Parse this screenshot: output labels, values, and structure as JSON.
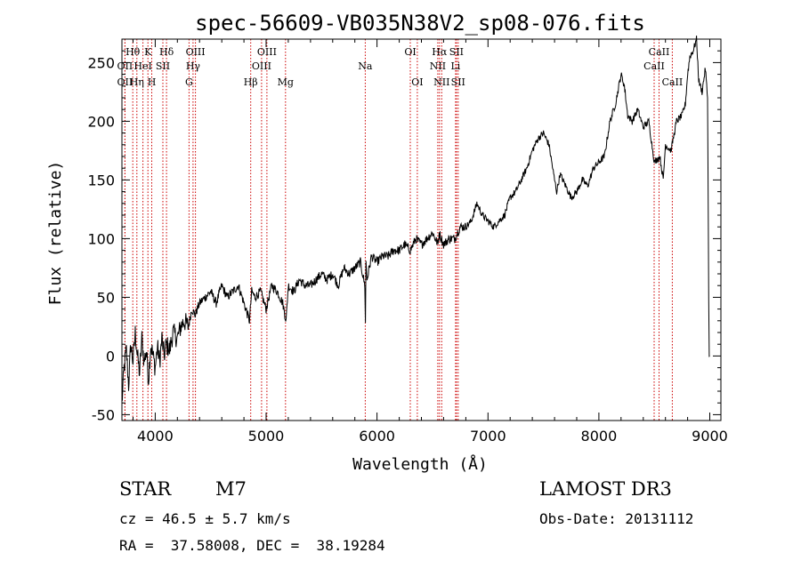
{
  "chart_data": {
    "type": "line",
    "title": "spec-56609-VB035N38V2_sp08-076.fits",
    "xlabel": "Wavelength (Å)",
    "ylabel": "Flux (relative)",
    "xlim": [
      3700,
      9100
    ],
    "ylim": [
      -55,
      270
    ],
    "xticks": [
      4000,
      5000,
      6000,
      7000,
      8000,
      9000
    ],
    "yticks": [
      -50,
      0,
      50,
      100,
      150,
      200,
      250
    ],
    "series": [
      {
        "name": "flux",
        "x": [
          3700,
          3720,
          3740,
          3760,
          3780,
          3800,
          3820,
          3840,
          3860,
          3880,
          3900,
          3920,
          3940,
          3960,
          3980,
          4000,
          4020,
          4040,
          4060,
          4080,
          4100,
          4130,
          4160,
          4200,
          4230,
          4260,
          4300,
          4330,
          4360,
          4400,
          4450,
          4500,
          4550,
          4600,
          4650,
          4700,
          4750,
          4800,
          4850,
          4870,
          4900,
          4950,
          5000,
          5050,
          5100,
          5150,
          5180,
          5200,
          5250,
          5300,
          5350,
          5400,
          5450,
          5500,
          5550,
          5600,
          5650,
          5700,
          5750,
          5800,
          5850,
          5890,
          5895,
          5900,
          5910,
          5950,
          6000,
          6050,
          6100,
          6150,
          6200,
          6250,
          6300,
          6350,
          6400,
          6450,
          6500,
          6550,
          6560,
          6600,
          6650,
          6700,
          6750,
          6800,
          6850,
          6900,
          6950,
          7000,
          7050,
          7100,
          7150,
          7200,
          7250,
          7300,
          7350,
          7400,
          7450,
          7500,
          7550,
          7600,
          7620,
          7650,
          7700,
          7750,
          7800,
          7850,
          7900,
          7950,
          8000,
          8050,
          8100,
          8150,
          8200,
          8230,
          8260,
          8300,
          8350,
          8400,
          8450,
          8500,
          8550,
          8580,
          8600,
          8650,
          8700,
          8750,
          8780,
          8800,
          8820,
          8850,
          8880,
          8900,
          8930,
          8960,
          8980,
          8990,
          8995,
          9000
        ],
        "y": [
          -40,
          -10,
          5,
          -25,
          10,
          -5,
          20,
          0,
          -15,
          15,
          -5,
          5,
          -20,
          10,
          0,
          -10,
          8,
          -5,
          15,
          0,
          10,
          5,
          20,
          15,
          25,
          30,
          25,
          40,
          35,
          45,
          50,
          55,
          45,
          60,
          50,
          55,
          60,
          45,
          30,
          55,
          50,
          55,
          40,
          60,
          55,
          45,
          30,
          60,
          55,
          65,
          60,
          60,
          65,
          70,
          65,
          70,
          60,
          75,
          70,
          75,
          80,
          60,
          30,
          80,
          65,
          85,
          80,
          85,
          85,
          90,
          90,
          95,
          90,
          100,
          95,
          100,
          105,
          95,
          105,
          95,
          100,
          100,
          110,
          110,
          115,
          130,
          120,
          115,
          110,
          115,
          120,
          135,
          140,
          150,
          160,
          175,
          185,
          190,
          180,
          150,
          140,
          155,
          145,
          135,
          140,
          150,
          145,
          160,
          165,
          170,
          200,
          215,
          240,
          230,
          205,
          200,
          210,
          195,
          200,
          165,
          170,
          150,
          180,
          175,
          200,
          205,
          215,
          240,
          255,
          260,
          270,
          235,
          225,
          245,
          220,
          50,
          -2,
          0
        ]
      }
    ],
    "line_annotations": [
      {
        "label": "Hθ",
        "x": 3798,
        "row": 1
      },
      {
        "label": "OII",
        "x": 3727,
        "row": 2
      },
      {
        "label": "OII",
        "x": 3727,
        "row": 3
      },
      {
        "label": "K",
        "x": 3934,
        "row": 1
      },
      {
        "label": "HeI",
        "x": 3889,
        "row": 2
      },
      {
        "label": "Hη",
        "x": 3835,
        "row": 3
      },
      {
        "label": "SII",
        "x": 4069,
        "row": 2
      },
      {
        "label": "H",
        "x": 3969,
        "row": 3
      },
      {
        "label": "Hδ",
        "x": 4102,
        "row": 1
      },
      {
        "label": "OIII",
        "x": 4363,
        "row": 1
      },
      {
        "label": "Hγ",
        "x": 4341,
        "row": 2
      },
      {
        "label": "G",
        "x": 4305,
        "row": 3
      },
      {
        "label": "OIII",
        "x": 5007,
        "row": 1
      },
      {
        "label": "OIII",
        "x": 4959,
        "row": 2
      },
      {
        "label": "Hβ",
        "x": 4861,
        "row": 3
      },
      {
        "label": "Mg",
        "x": 5175,
        "row": 3
      },
      {
        "label": "Na",
        "x": 5894,
        "row": 2
      },
      {
        "label": "OI",
        "x": 6300,
        "row": 1
      },
      {
        "label": "OI",
        "x": 6363,
        "row": 3
      },
      {
        "label": "Hα",
        "x": 6563,
        "row": 1
      },
      {
        "label": "SII",
        "x": 6716,
        "row": 1
      },
      {
        "label": "NII",
        "x": 6548,
        "row": 2
      },
      {
        "label": "Li",
        "x": 6708,
        "row": 2
      },
      {
        "label": "NII",
        "x": 6583,
        "row": 3
      },
      {
        "label": "SII",
        "x": 6731,
        "row": 3
      },
      {
        "label": "CaII",
        "x": 8542,
        "row": 1
      },
      {
        "label": "CaII",
        "x": 8498,
        "row": 2
      },
      {
        "label": "CaII",
        "x": 8662,
        "row": 3
      }
    ]
  },
  "info": {
    "object_type": "STAR",
    "subclass": "M7",
    "survey": "LAMOST DR3",
    "redshift": "cz = 46.5 ± 5.7 km/s",
    "obs_date": "Obs-Date: 20131112",
    "coords": "RA =  37.58008, DEC =  38.19284"
  },
  "colors": {
    "line": "#000000",
    "marker": "#cc0000",
    "text": "#000000"
  }
}
